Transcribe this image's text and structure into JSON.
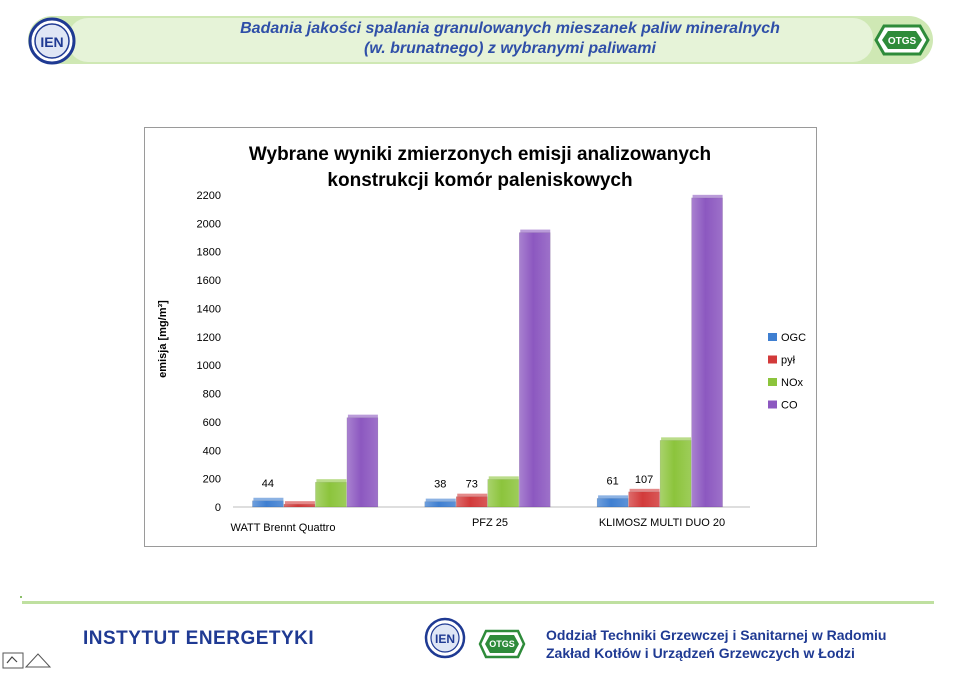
{
  "slide": {
    "title_line1": "Badania jakości spalania granulowanych mieszanek paliw mineralnych",
    "title_line2": "(w. brunatnego) z wybranymi paliwami",
    "logo_left_text": "IEN",
    "logo_right_text": "OTGS",
    "footer_left": "INSTYTUT  ENERGETYKI",
    "footer_right_line1": "Oddział Techniki Grzewczej i Sanitarnej  w Radomiu",
    "footer_right_line2": "Zakład Kotłów i Urządzeń Grzewczych w Łodzi",
    "footer_logo_ien_text": "IEN",
    "footer_logo_otgs_text": "OTGS"
  },
  "chart_data": {
    "type": "bar",
    "title_line1": "Wybrane wyniki zmierzonych emisji analizowanych",
    "title_line2": "konstrukcji komór paleniskowych",
    "xlabel": "",
    "ylabel": "emisja [mg/m³]",
    "ylim": [
      0,
      2200
    ],
    "yticks": [
      0,
      200,
      400,
      600,
      800,
      1000,
      1200,
      1400,
      1600,
      1800,
      2000,
      2200
    ],
    "categories": [
      "WATT Brennt Quattro",
      "PFZ 25",
      "KLIMOSZ MULTI DUO 20"
    ],
    "series": [
      {
        "name": "OGC",
        "color": "#3f7fd1",
        "values": [
          44,
          38,
          61
        ],
        "labels": [
          "44",
          "38",
          "61"
        ]
      },
      {
        "name": "pył",
        "color": "#d23a3a",
        "values": [
          20,
          73,
          107
        ],
        "labels": [
          "",
          "73",
          "107"
        ]
      },
      {
        "name": "NOx",
        "color": "#8cc43c",
        "values": [
          175,
          195,
          470
        ],
        "labels": [
          "",
          "",
          ""
        ]
      },
      {
        "name": "CO",
        "color": "#8c58c0",
        "values": [
          630,
          1935,
          2180
        ],
        "labels": [
          "",
          "",
          ""
        ]
      }
    ],
    "legend_position": "right",
    "grid": false
  },
  "colors": {
    "title_blue": "#2f4fa8",
    "footer_blue": "#1f3a93",
    "band_green": "#cfe8b4",
    "logo_green": "#2e8b3a"
  }
}
